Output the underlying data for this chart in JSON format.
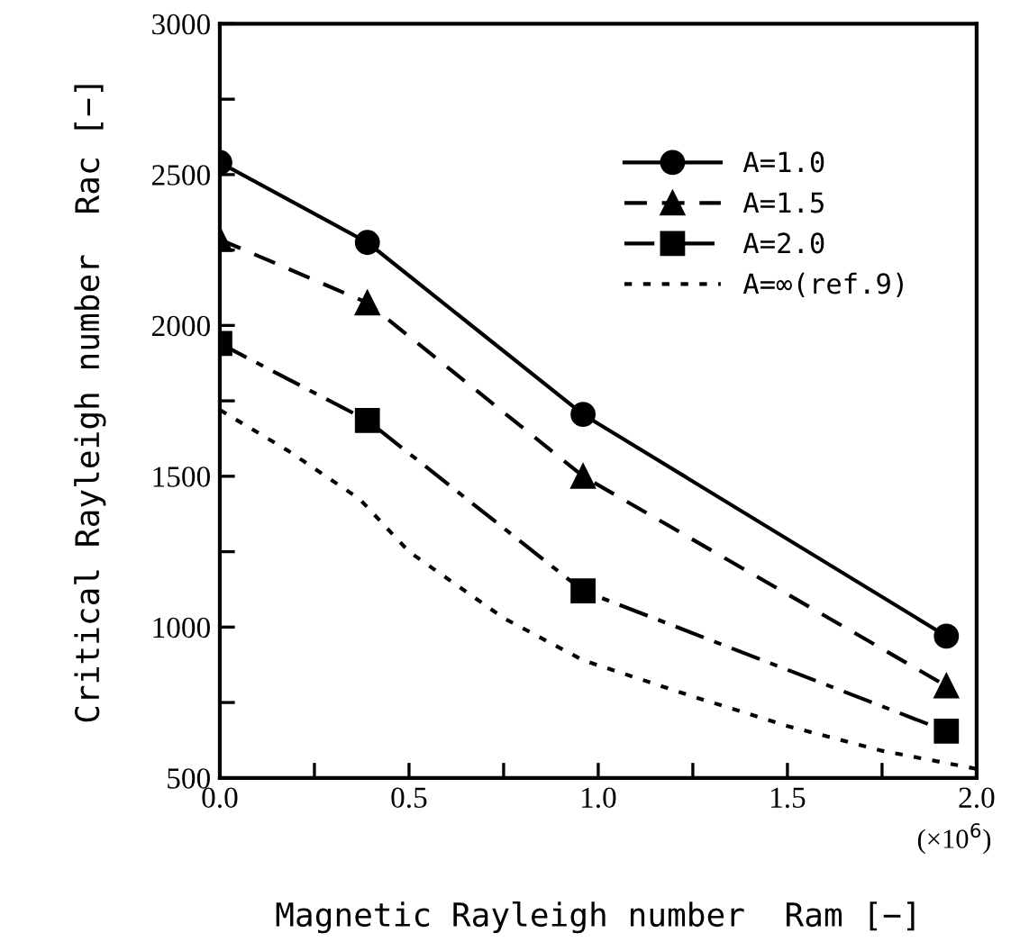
{
  "chart_data": {
    "type": "line",
    "xlabel": "Magnetic Rayleigh number  Ram [−]",
    "ylabel": "Critical Rayleigh number  Rac [−]",
    "annotations": [
      "(×10$^{6}$)"
    ],
    "xlim": [
      0,
      2.0
    ],
    "ylim": [
      500,
      3000
    ],
    "xticks": [
      {
        "value": 0,
        "label": "0.0"
      },
      {
        "value": 0.25,
        "label": null
      },
      {
        "value": 0.5,
        "label": "0.5"
      },
      {
        "value": 0.75,
        "label": null
      },
      {
        "value": 1.0,
        "label": "1.0"
      },
      {
        "value": 1.25,
        "label": null
      },
      {
        "value": 1.5,
        "label": "1.5"
      },
      {
        "value": 1.75,
        "label": null
      },
      {
        "value": 2.0,
        "label": "2.0"
      }
    ],
    "yticks": [
      500,
      {
        "value": 750,
        "label": null
      },
      1000,
      {
        "value": 1250,
        "label": null
      },
      1500,
      {
        "value": 1750,
        "label": null
      },
      2000,
      {
        "value": 2250,
        "label": null
      },
      2500,
      {
        "value": 2750,
        "label": null
      },
      3000
    ],
    "grid": false,
    "legend": "top right",
    "series": [
      {
        "name": "A=1.0",
        "color": "#000000",
        "marker": "circle",
        "line_style": "solid",
        "x": [
          0,
          0.39,
          0.96,
          1.92
        ],
        "values": [
          2540,
          2275,
          1705,
          970
        ]
      },
      {
        "name": "A=1.5",
        "color": "#000000",
        "marker": "triangle",
        "line_style": "dashed",
        "x": [
          0,
          0.39,
          0.96,
          1.92
        ],
        "values": [
          2285,
          2075,
          1500,
          805
        ]
      },
      {
        "name": "A=2.0",
        "color": "#000000",
        "marker": "square",
        "line_style": "dashdot",
        "x": [
          0,
          0.39,
          0.96,
          1.92
        ],
        "values": [
          1940,
          1685,
          1120,
          655
        ]
      },
      {
        "name": "A=∞(ref.9)",
        "color": "#000000",
        "marker": "none",
        "line_style": "dotted",
        "x": [
          0,
          0.18,
          0.37,
          0.5,
          0.75,
          0.96,
          1.25,
          1.5,
          1.75,
          2.0
        ],
        "values": [
          1720,
          1585,
          1424,
          1250,
          1030,
          890,
          770,
          672,
          590,
          530
        ]
      }
    ]
  }
}
